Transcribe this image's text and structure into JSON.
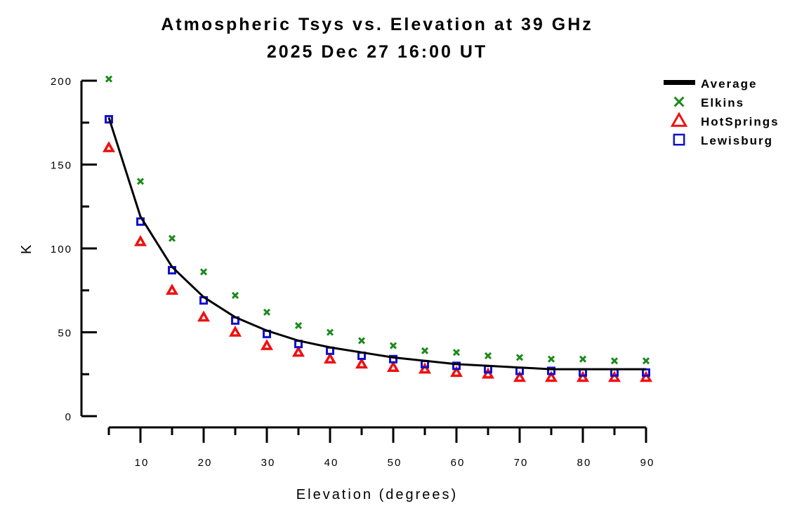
{
  "chart_data": {
    "type": "scatter",
    "title": "Atmospheric Tsys vs. Elevation at 39 GHz",
    "subtitle": "2025 Dec 27 16:00 UT",
    "xlabel": "Elevation (degrees)",
    "ylabel": "K",
    "xlim": [
      5,
      90
    ],
    "ylim": [
      0,
      200
    ],
    "x_ticks": [
      10,
      20,
      30,
      40,
      50,
      60,
      70,
      80,
      90
    ],
    "y_ticks": [
      0,
      50,
      100,
      150,
      200
    ],
    "grid": false,
    "legend_position": "top-right",
    "x": [
      5,
      10,
      15,
      20,
      25,
      30,
      35,
      40,
      45,
      50,
      55,
      60,
      65,
      70,
      75,
      80,
      85,
      90
    ],
    "series": [
      {
        "name": "Average",
        "style": "line",
        "color": "#000000",
        "values": [
          178,
          119,
          89,
          71,
          59,
          51,
          45,
          41,
          38,
          35,
          33,
          31,
          30,
          29,
          28,
          28,
          28,
          28
        ]
      },
      {
        "name": "Elkins",
        "style": "x-marker",
        "color": "#1a8a1a",
        "values": [
          201,
          140,
          106,
          86,
          72,
          62,
          54,
          50,
          45,
          42,
          39,
          38,
          36,
          35,
          34,
          34,
          33,
          33
        ]
      },
      {
        "name": "HotSprings",
        "style": "triangle-marker",
        "color": "#ee1111",
        "values": [
          160,
          104,
          75,
          59,
          50,
          42,
          38,
          34,
          31,
          29,
          28,
          26,
          25,
          23,
          23,
          23,
          23,
          23
        ]
      },
      {
        "name": "Lewisburg",
        "style": "square-marker",
        "color": "#1111cc",
        "values": [
          177,
          116,
          87,
          69,
          57,
          49,
          43,
          39,
          36,
          34,
          31,
          30,
          28,
          27,
          27,
          26,
          26,
          26
        ]
      }
    ]
  }
}
